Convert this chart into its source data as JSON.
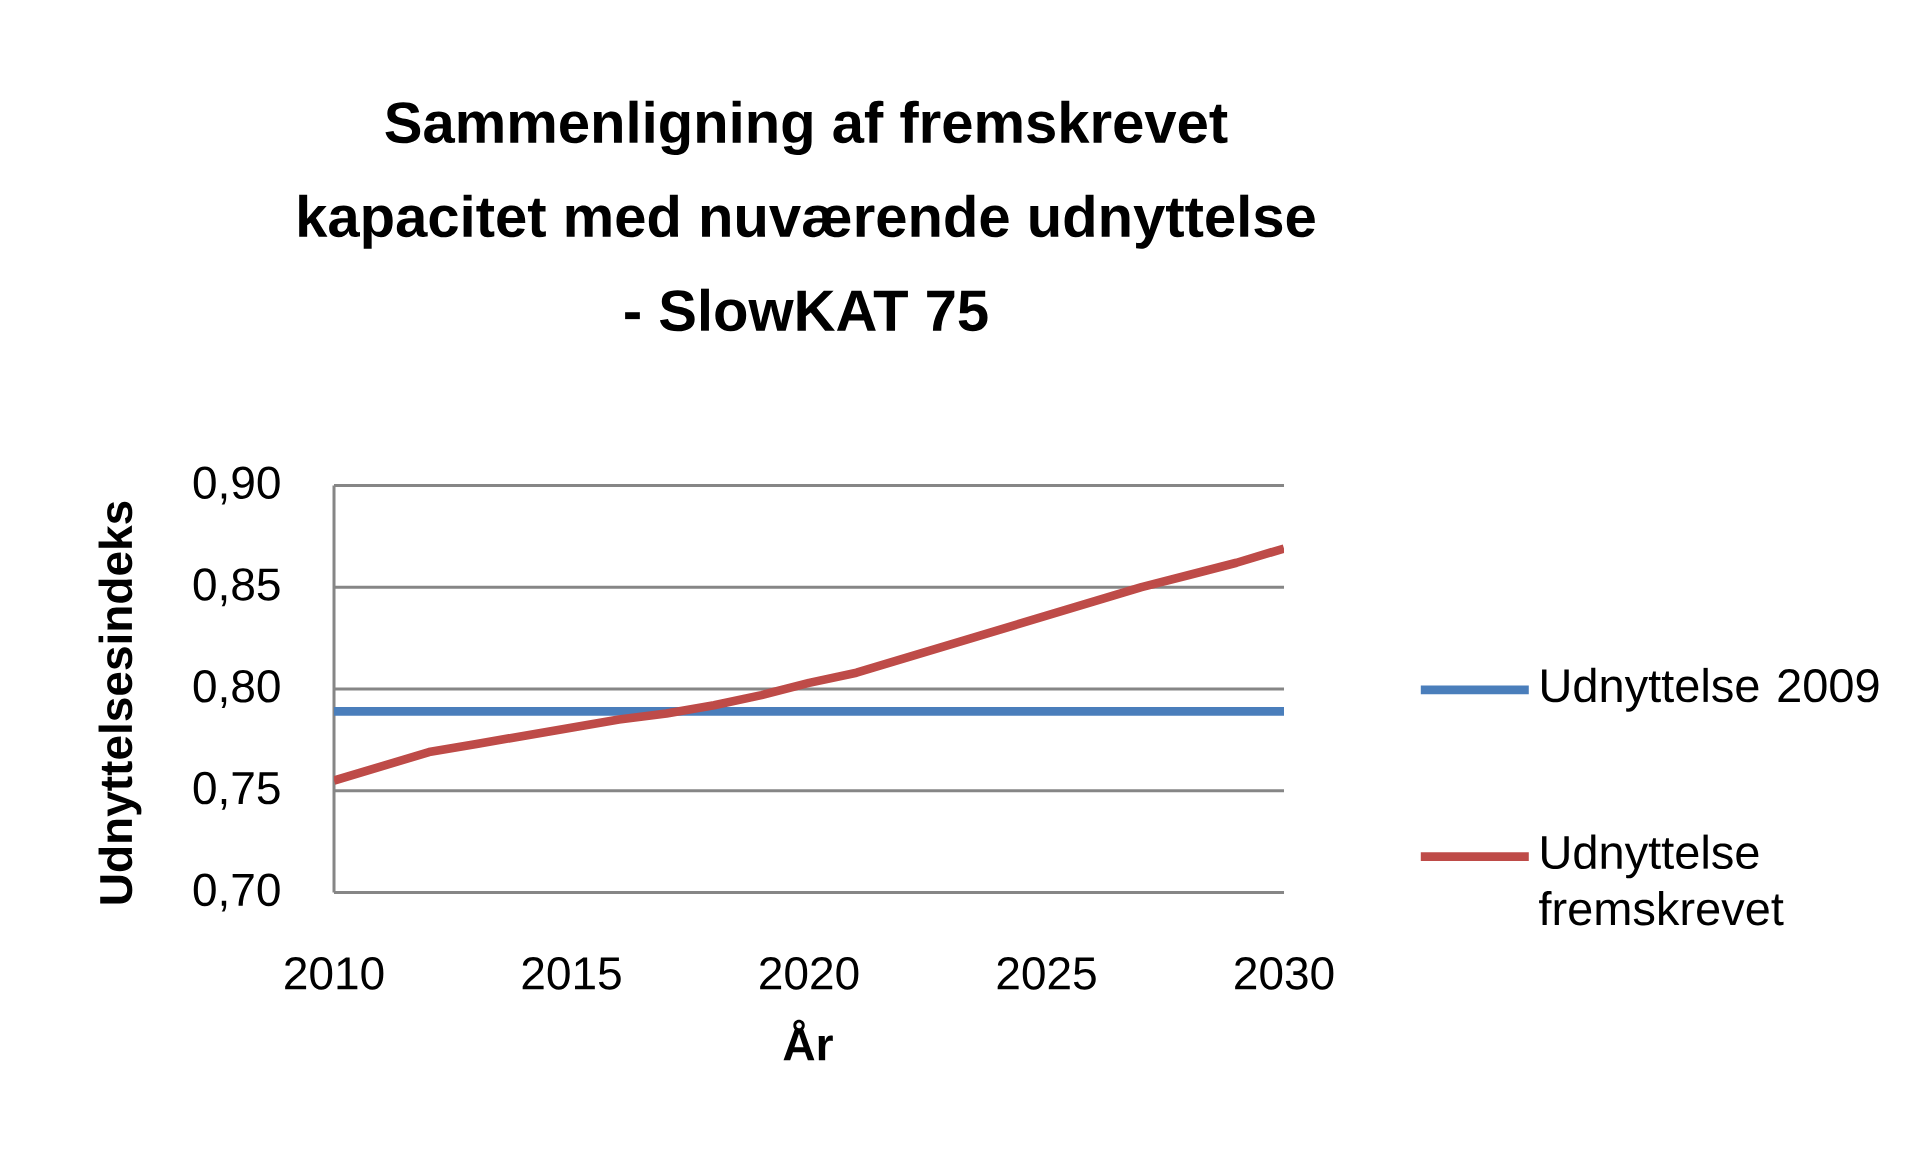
{
  "chart_data": {
    "type": "line",
    "title": "Sammenligning af fremskrevet kapacitet med nuværende udnyttelse - SlowKAT 75",
    "xlabel": "År",
    "ylabel": "Udnyttelsesindeks",
    "xlim": [
      2010,
      2030
    ],
    "xticks": [
      2010,
      2015,
      2020,
      2025,
      2030
    ],
    "ylim": [
      0.7,
      0.9
    ],
    "yticks": [
      {
        "value": 0.7,
        "label": "0,70"
      },
      {
        "value": 0.75,
        "label": "0,75"
      },
      {
        "value": 0.8,
        "label": "0,80"
      },
      {
        "value": 0.85,
        "label": "0,85"
      },
      {
        "value": 0.9,
        "label": "0,90"
      }
    ],
    "grid": "y",
    "legend": "right",
    "line_style": "solid",
    "series": [
      {
        "name": "Udnyttelse 2009",
        "color": "#4a7ebb",
        "x": [
          2010,
          2030
        ],
        "values": [
          0.789,
          0.789
        ]
      },
      {
        "name": "Udnyttelse fremskrevet",
        "color": "#be4b48",
        "x": [
          2010,
          2011,
          2012,
          2013,
          2014,
          2015,
          2016,
          2017,
          2018,
          2019,
          2020,
          2021,
          2022,
          2023,
          2024,
          2025,
          2026,
          2027,
          2028,
          2029,
          2030
        ],
        "values": [
          0.755,
          0.762,
          0.769,
          0.773,
          0.777,
          0.781,
          0.785,
          0.788,
          0.792,
          0.797,
          0.803,
          0.808,
          0.815,
          0.822,
          0.829,
          0.836,
          0.843,
          0.85,
          0.856,
          0.862,
          0.869
        ]
      }
    ]
  }
}
